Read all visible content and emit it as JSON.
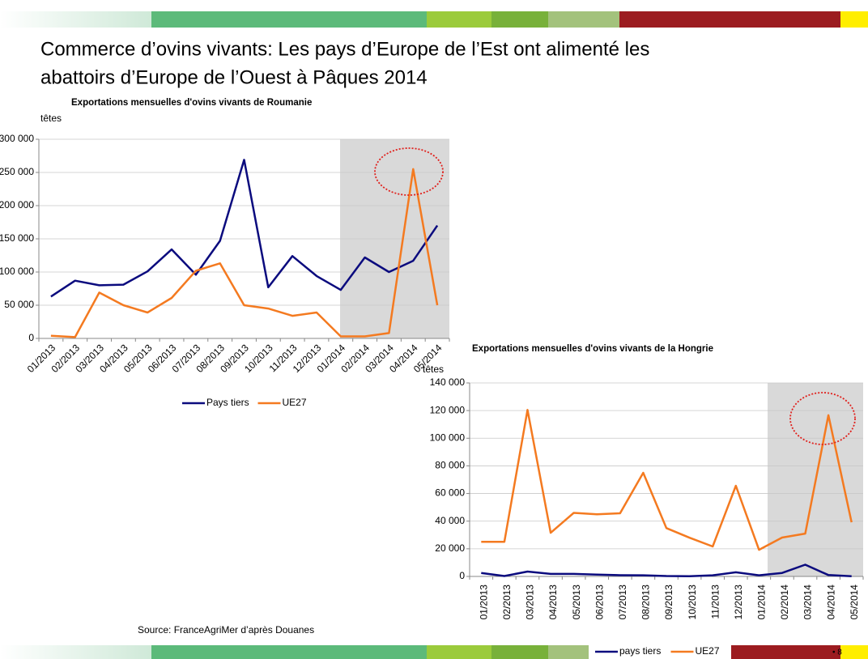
{
  "slide_title": [
    "Commerce d’ovins vivants: Les pays d’Europe de l’Est ont alimenté les",
    "abattoirs d’Europe de l’Ouest à Pâques 2014"
  ],
  "source": "Source: FranceAgriMer d’après Douanes",
  "page_number": "• 8",
  "chart_data": [
    {
      "type": "line",
      "title": "Exportations mensuelles d'ovins vivants de Roumanie",
      "y_label": "têtes",
      "categories": [
        "01/2013",
        "02/2013",
        "03/2013",
        "04/2013",
        "05/2013",
        "06/2013",
        "07/2013",
        "08/2013",
        "09/2013",
        "10/2013",
        "11/2013",
        "12/2013",
        "01/2014",
        "02/2014",
        "03/2014",
        "04/2014",
        "05/2014"
      ],
      "series": [
        {
          "name": "Pays tiers",
          "color": "#0b0b7e",
          "values": [
            63000,
            87000,
            80000,
            81000,
            101000,
            134000,
            96000,
            147000,
            269000,
            77000,
            124000,
            94000,
            73000,
            122000,
            100000,
            117000,
            170000
          ]
        },
        {
          "name": "UE27",
          "color": "#f47a20",
          "values": [
            4000,
            2000,
            69000,
            50000,
            39000,
            61000,
            102000,
            113000,
            50000,
            45000,
            34000,
            39000,
            3000,
            3000,
            8000,
            255000,
            50000
          ]
        }
      ],
      "ylim": [
        0,
        300000
      ],
      "yticks": [
        0,
        {
          "value": 50000,
          "label": "50 000"
        },
        {
          "value": 100000,
          "label": "100 000"
        },
        {
          "value": 150000,
          "label": "150 000"
        },
        {
          "value": 200000,
          "label": "200 000"
        },
        {
          "value": 250000,
          "label": "250 000"
        },
        {
          "value": 300000,
          "label": "300 000"
        }
      ],
      "legend": "bottom"
    },
    {
      "type": "line",
      "title": "Exportations mensuelles d'ovins vivants de la Hongrie",
      "y_label": "têtes",
      "categories": [
        "01/2013",
        "02/2013",
        "03/2013",
        "04/2013",
        "05/2013",
        "06/2013",
        "07/2013",
        "08/2013",
        "09/2013",
        "10/2013",
        "11/2013",
        "12/2013",
        "01/2014",
        "02/2014",
        "03/2014",
        "04/2014",
        "05/2014"
      ],
      "series": [
        {
          "name": "pays tiers",
          "color": "#0b0b7e",
          "values": [
            2500,
            300,
            3500,
            1800,
            1800,
            1300,
            900,
            800,
            300,
            200,
            800,
            3000,
            800,
            2500,
            8500,
            1000,
            200
          ]
        },
        {
          "name": "UE27",
          "color": "#f47a20",
          "values": [
            25000,
            25000,
            120500,
            31600,
            46000,
            45000,
            45700,
            75000,
            35000,
            28000,
            21700,
            65600,
            19300,
            28100,
            31000,
            116600,
            39200
          ]
        }
      ],
      "ylim": [
        0,
        140000
      ],
      "yticks": [
        0,
        {
          "value": 20000,
          "label": "20 000"
        },
        {
          "value": 40000,
          "label": "40 000"
        },
        {
          "value": 60000,
          "label": "60 000"
        },
        {
          "value": 80000,
          "label": "80 000"
        },
        {
          "value": 100000,
          "label": "100 000"
        },
        {
          "value": 120000,
          "label": "120 000"
        },
        {
          "value": 140000,
          "label": "140 000"
        }
      ],
      "legend": "bottom"
    }
  ]
}
